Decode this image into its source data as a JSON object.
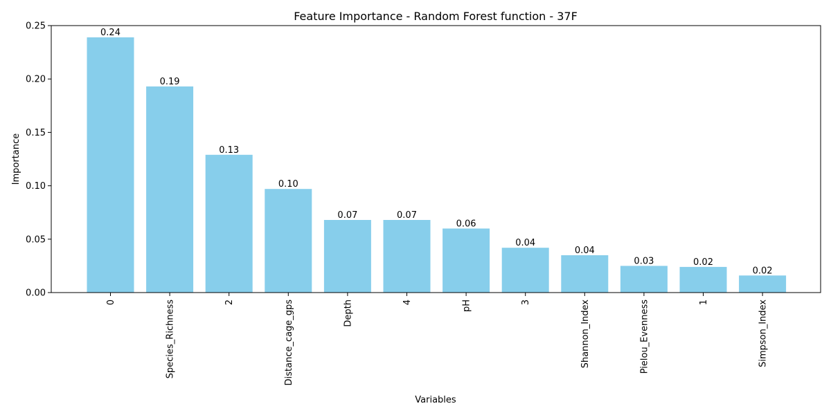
{
  "chart_data": {
    "type": "bar",
    "title": "Feature Importance - Random Forest function - 37F",
    "xlabel": "Variables",
    "ylabel": "Importance",
    "ylim": [
      0,
      0.25
    ],
    "yticks": [
      "0.00",
      "0.05",
      "0.10",
      "0.15",
      "0.20",
      "0.25"
    ],
    "ytick_values": [
      0,
      0.05,
      0.1,
      0.15,
      0.2,
      0.25
    ],
    "grid": false,
    "bar_color": "#87ceeb",
    "categories": [
      "0",
      "Species_Richness",
      "2",
      "Distance_cage_gps",
      "Depth",
      "4",
      "pH",
      "3",
      "Shannon_Index",
      "Pielou_Evenness",
      "1",
      "Simpson_Index"
    ],
    "values": [
      0.239,
      0.193,
      0.129,
      0.097,
      0.068,
      0.068,
      0.06,
      0.042,
      0.035,
      0.025,
      0.024,
      0.016
    ],
    "value_labels": [
      "0.24",
      "0.19",
      "0.13",
      "0.10",
      "0.07",
      "0.07",
      "0.06",
      "0.04",
      "0.04",
      "0.03",
      "0.02",
      "0.02"
    ]
  }
}
